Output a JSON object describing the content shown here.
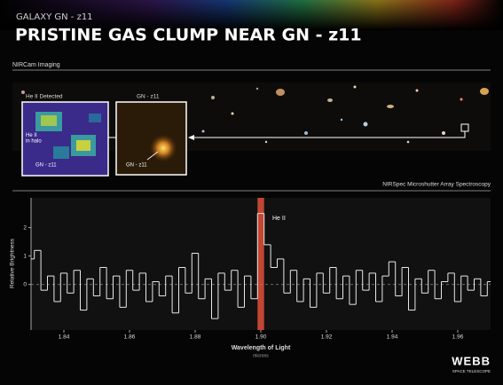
{
  "header": {
    "kicker": "GALAXY GN - z11",
    "title": "PRISTINE GAS CLUMP NEAR GN - z11"
  },
  "imaging": {
    "section_label": "NIRCam Imaging",
    "inset_1": {
      "title": "He II Detected",
      "halo_label": "He II\nin halo",
      "galaxy_label": "GN - z11"
    },
    "inset_2": {
      "title": "GN - z11",
      "galaxy_label": "GN - z11"
    }
  },
  "chart_data": {
    "type": "step",
    "section_label": "NIRSpec Microshutter Array Spectroscopy",
    "ylabel": "Relative Brightness",
    "xlabel": "Wavelength of Light",
    "xunit": "microns",
    "annotation": "He II",
    "color": "#e8e8e8",
    "highlight": {
      "x": [
        1.899,
        1.901
      ],
      "color": "#e0503a"
    },
    "reference_line": 0,
    "xlim": [
      1.83,
      1.97
    ],
    "ylim": [
      -1.6,
      3.05
    ],
    "xticks": [
      1.84,
      1.86,
      1.88,
      {
        "value": 1.9,
        "label": "1.90"
      },
      1.92,
      1.94,
      1.96
    ],
    "yticks": [
      0,
      1,
      2
    ],
    "x": [
      1.83,
      1.832,
      1.834,
      1.836,
      1.838,
      1.84,
      1.842,
      1.844,
      1.846,
      1.848,
      1.85,
      1.852,
      1.854,
      1.856,
      1.858,
      1.86,
      1.862,
      1.864,
      1.866,
      1.868,
      1.87,
      1.872,
      1.874,
      1.876,
      1.878,
      1.88,
      1.882,
      1.884,
      1.886,
      1.888,
      1.89,
      1.892,
      1.894,
      1.896,
      1.898,
      1.9,
      1.902,
      1.904,
      1.906,
      1.908,
      1.91,
      1.912,
      1.914,
      1.916,
      1.918,
      1.92,
      1.922,
      1.924,
      1.926,
      1.928,
      1.93,
      1.932,
      1.934,
      1.936,
      1.938,
      1.94,
      1.942,
      1.944,
      1.946,
      1.948,
      1.95,
      1.952,
      1.954,
      1.956,
      1.958,
      1.96,
      1.962,
      1.964,
      1.966,
      1.968,
      1.97
    ],
    "values": [
      0.9,
      1.2,
      -0.2,
      0.3,
      -0.6,
      0.4,
      -0.3,
      0.5,
      -0.9,
      0.2,
      -0.4,
      0.6,
      -0.5,
      0.3,
      -0.8,
      0.5,
      -0.2,
      0.4,
      -0.6,
      0.1,
      -0.4,
      0.3,
      -1.0,
      0.6,
      -0.3,
      1.1,
      -0.5,
      0.2,
      -1.2,
      0.4,
      -0.2,
      0.5,
      -0.8,
      0.3,
      -0.5,
      2.5,
      1.4,
      0.6,
      0.9,
      -0.3,
      0.5,
      -0.6,
      0.2,
      -0.8,
      0.4,
      -0.3,
      0.6,
      -0.5,
      0.3,
      -0.7,
      0.5,
      -0.2,
      0.4,
      -0.6,
      0.3,
      0.8,
      -0.4,
      0.6,
      -0.9,
      0.2,
      -0.3,
      0.5,
      -0.5,
      0.1,
      0.4,
      -0.6,
      0.3,
      -0.2,
      0.2,
      -0.4,
      0.1
    ]
  },
  "logo": {
    "name": "WEBB",
    "subtitle": "SPACE TELESCOPE"
  }
}
